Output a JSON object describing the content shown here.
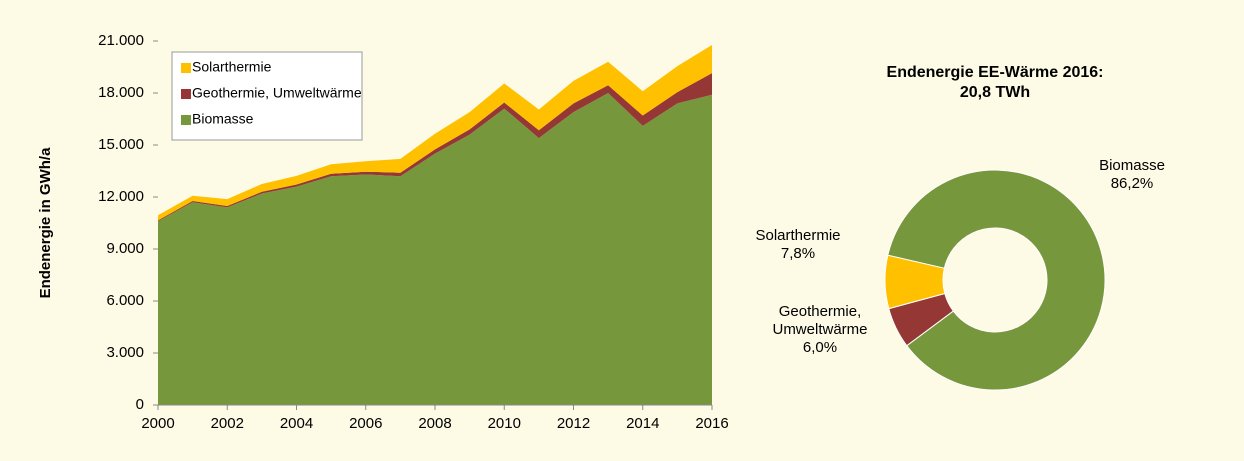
{
  "chart_data": [
    {
      "type": "area",
      "y_label": "Endenergie in GWh/a",
      "x": [
        2000,
        2001,
        2002,
        2003,
        2004,
        2005,
        2006,
        2007,
        2008,
        2009,
        2010,
        2011,
        2012,
        2013,
        2014,
        2015,
        2016
      ],
      "series": [
        {
          "name": "Biomasse",
          "color": "#77973d",
          "values": [
            10600,
            11700,
            11400,
            12200,
            12600,
            13200,
            13300,
            13200,
            14500,
            15600,
            17100,
            15400,
            16900,
            18000,
            16100,
            17400,
            17900
          ]
        },
        {
          "name": "Geothermie, Umweltwärme",
          "color": "#953735",
          "values": [
            50,
            70,
            80,
            100,
            120,
            140,
            160,
            200,
            250,
            300,
            350,
            450,
            500,
            450,
            600,
            650,
            1250
          ]
        },
        {
          "name": "Solarthermie",
          "color": "#ffc000",
          "values": [
            300,
            300,
            400,
            450,
            500,
            550,
            600,
            800,
            900,
            1000,
            1100,
            1200,
            1300,
            1350,
            1400,
            1500,
            1620
          ]
        }
      ],
      "xlim": [
        2000,
        2016
      ],
      "xticks": [
        2000,
        2002,
        2004,
        2006,
        2008,
        2010,
        2012,
        2014,
        2016
      ],
      "ylim": [
        0,
        21000
      ],
      "yticks": [
        0,
        {
          "value": 3000,
          "label": "3.000"
        },
        {
          "value": 6000,
          "label": "6.000"
        },
        {
          "value": 9000,
          "label": "9.000"
        },
        {
          "value": 12000,
          "label": "12.000"
        },
        {
          "value": 15000,
          "label": "15.000"
        },
        {
          "value": 18000,
          "label": "18.000"
        },
        {
          "value": 21000,
          "label": "21.000"
        }
      ],
      "legend": "upper left"
    },
    {
      "type": "pie",
      "title": "Endenergie EE-Wärme 2016:",
      "subtitle": "20,8 TWh",
      "categories": [
        "Biomasse",
        "Geothermie, Umweltwärme",
        "Solarthermie"
      ],
      "values": [
        86.2,
        6.0,
        7.8
      ],
      "value_labels": [
        "86,2%",
        "6,0%",
        "7,8%"
      ],
      "colors": [
        "#77973d",
        "#953735",
        "#ffc000"
      ],
      "donut": true
    }
  ]
}
